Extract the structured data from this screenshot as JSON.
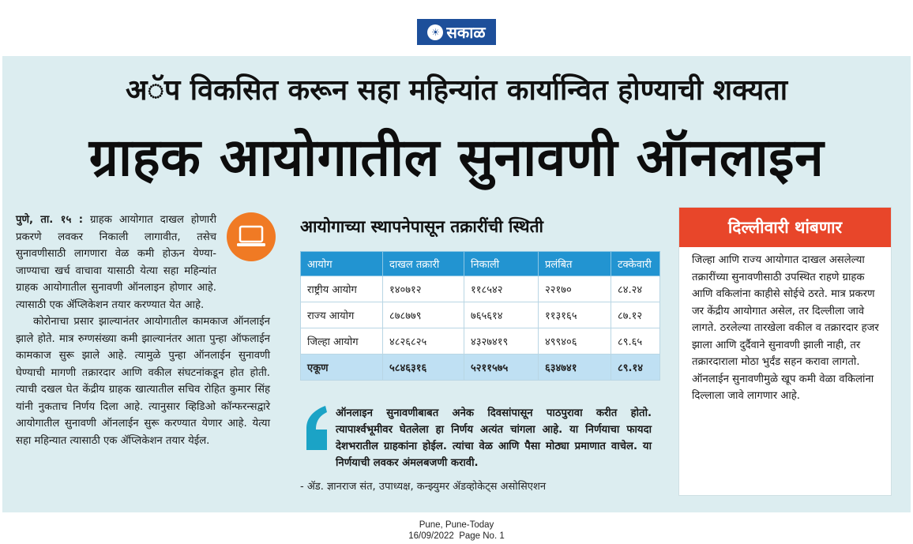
{
  "masthead": {
    "logo_text": "सकाळ",
    "logo_color": "#1d4f9a"
  },
  "article": {
    "subheadline": "अॅप विकसित करून सहा महिन्यांत कार्यान्वित होण्याची शक्यता",
    "headline": "ग्राहक आयोगातील सुनावणी ऑनलाइन",
    "dateline": "पुणे, ता. १५ :",
    "lead": "ग्राहक आयोगात दाखल होणारी प्रकरणे लवकर निकाली लागावीत, तसेच सुनावणीसाठी लागणारा वेळ कमी होऊन येण्या-जाण्याचा खर्च वाचावा यासाठी येत्या सहा महिन्यांत ग्राहक आयोगातील सुनावणी ऑनलाइन होणार आहे. त्यासाठी एक ॲप्लिकेशन तयार करण्यात येत आहे.",
    "para2": "कोरोनाचा प्रसार झाल्यानंतर आयोगातील कामकाज ऑनलाईन झाले होते. मात्र रुग्णसंख्या कमी झाल्यानंतर आता पुन्हा ऑफलाईन कामकाज सुरू झाले आहे. त्यामुळे पुन्हा ऑनलाईन सुनावणी घेण्याची मागणी तक्रारदार आणि वकील संघटनांकडून होत होती. त्याची दखल घेत केंद्रीय ग्राहक खात्यातील सचिव रोहित कुमार सिंह यांनी नुकताच निर्णय दिला आहे. त्यानुसार व्हिडिओ कॉन्फरन्सद्वारे आयोगातील सुनावणी ऑनलाईन सुरू करण्यात येणार आहे. येत्या सहा महिन्यात त्यासाठी एक ॲप्लिकेशन तयार येईल.",
    "icon": "laptop-icon",
    "accent_color": "#f07a24"
  },
  "table": {
    "title": "आयोगाच्या स्थापनेपासून तक्रारींची स्थिती",
    "headers": [
      "आयोग",
      "दाखल तक्रारी",
      "निकाली",
      "प्रलंबित",
      "टक्केवारी"
    ],
    "rows": [
      [
        "राष्ट्रीय आयोग",
        "१४०७१२",
        "११८५४२",
        "२२१७०",
        "८४.२४"
      ],
      [
        "राज्य आयोग",
        "८७८७७९",
        "७६५६१४",
        "११३१६५",
        "८७.१२"
      ],
      [
        "जिल्हा आयोग",
        "४८२६८२५",
        "४३२७४१९",
        "४९९४०६",
        "८९.६५"
      ]
    ],
    "total": [
      "एकूण",
      "५८४६३१६",
      "५२११५७५",
      "६३४७४१",
      "८९.१४"
    ],
    "header_color": "#2294d1"
  },
  "quote": {
    "text": "ऑनलाइन सुनावणीबाबत अनेक दिवसांपासून पाठपुरावा करीत होतो. त्यापार्श्‍वभूमीवर घेतलेला हा निर्णय अत्यंत चांगला आहे. या निर्णयाचा फायदा देशभरातील ग्राहकांना होईल. त्यांचा वेळ आणि पैसा मोठ्या प्रमाणात वाचेल. या निर्णयाची लवकर अंमलबजणी करावी.",
    "attribution": "- ॲड. ज्ञानराज संत, उपाध्यक्ष, कन्झ्युमर ॲडव्होकेट्स असोसिएशन",
    "mark_color": "#1ba3c6"
  },
  "sidebar": {
    "title": "दिल्लीवारी थांबणार",
    "body": "जिल्हा आणि राज्य आयोगात दाखल असलेल्या तक्रारींच्या सुनावणीसाठी उपस्थित राहणे ग्राहक आणि वकिलांना काहीसे सोईचे ठरते. मात्र प्रकरण जर केंद्रीय आयोगात असेल, तर दिल्लीला जावे लागते. ठरलेल्या तारखेला वकील व तक्रारदार हजर झाला आणि दुर्दैवाने सुनावणी झाली नाही, तर तक्रारदाराला मोठा भुर्दंड सहन करावा लागतो. ऑनलाईन सुनावणीमुळे खूप कमी वेळा वकिलांना दिल्लाला जावे लागणार आहे.",
    "title_bg": "#e8462a"
  },
  "footer": {
    "edition": "Pune, Pune-Today",
    "date_page": "16/09/2022  Page No. 1"
  }
}
